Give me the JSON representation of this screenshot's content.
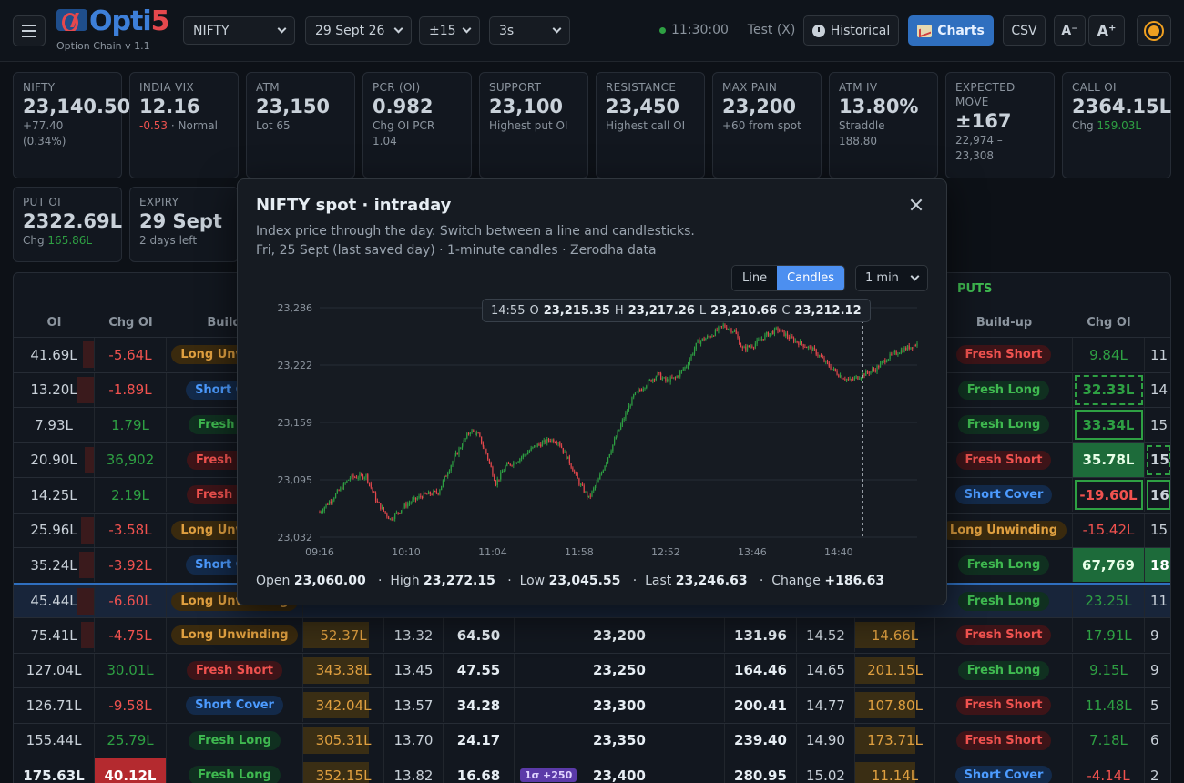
{
  "app": {
    "logo_main": "Opti",
    "logo_accent": "5",
    "subtitle": "Option Chain v 1.1"
  },
  "toolbar": {
    "symbol": "NIFTY",
    "expiry": "29 Sept 26",
    "strikes": "±15",
    "refresh": "3s",
    "time": "11:30:00",
    "mode": "Test (X)",
    "historical": "Historical",
    "charts": "Charts",
    "csv": "CSV",
    "font_down": "A⁻",
    "font_up": "A⁺"
  },
  "cards": [
    {
      "label": "NIFTY",
      "value": "23,140.50",
      "sub1": "+77.40",
      "sub2": "(0.34%)"
    },
    {
      "label": "INDIA VIX",
      "value": "12.16",
      "sub_red": "-0.53",
      "sub_rest": " · Normal"
    },
    {
      "label": "ATM",
      "value": "23,150",
      "sub1": "Lot 65"
    },
    {
      "label": "PCR (OI)",
      "value": "0.982",
      "sub1": "Chg OI PCR",
      "sub2": "1.04"
    },
    {
      "label": "SUPPORT",
      "value": "23,100",
      "sub1": "Highest put OI"
    },
    {
      "label": "RESISTANCE",
      "value": "23,450",
      "sub1": "Highest call OI"
    },
    {
      "label": "MAX PAIN",
      "value": "23,200",
      "sub1": "+60 from spot"
    },
    {
      "label": "ATM IV",
      "value": "13.80%",
      "sub1": "Straddle",
      "sub2": "188.80"
    },
    {
      "label": "EXPECTED MOVE",
      "value": "±167",
      "sub1": "22,974 –",
      "sub2": "23,308"
    },
    {
      "label": "CALL OI",
      "value": "2364.15L",
      "sub_pre": "Chg ",
      "sub_green": "159.03L"
    },
    {
      "label": "PUT OI",
      "value": "2322.69L",
      "sub_pre": "Chg ",
      "sub_green": "165.86L"
    },
    {
      "label": "EXPIRY",
      "value": "29 Sept",
      "sub1": "2 days left"
    }
  ],
  "table": {
    "puts_label": "PUTS",
    "headers": {
      "oi": "OI",
      "chg_oi": "Chg OI",
      "buildup_call": "Build-up",
      "buildup_put": "Build-up",
      "chg_oi_put": "Chg OI"
    },
    "rows": [
      {
        "oi": "41.69L",
        "chg": "-5.64L",
        "bu": "Long Unwinding",
        "pbu": "Fresh Short",
        "pchg": "9.84L",
        "poi": "11"
      },
      {
        "oi": "13.20L",
        "chg": "-1.89L",
        "bu": "Short Cover",
        "pbu": "Fresh Long",
        "pchg": "32.33L",
        "poi": "14"
      },
      {
        "oi": "7.93L",
        "chg": "1.79L",
        "bu": "Fresh Long",
        "pbu": "Fresh Long",
        "pchg": "33.34L",
        "poi": "15"
      },
      {
        "oi": "20.90L",
        "chg": "36,902",
        "bu": "Fresh Short",
        "pbu": "Fresh Short",
        "pchg": "35.78L",
        "poi": "15"
      },
      {
        "oi": "14.25L",
        "chg": "2.19L",
        "bu": "Fresh Short",
        "pbu": "Short Cover",
        "pchg": "-19.60L",
        "poi": "16"
      },
      {
        "oi": "25.96L",
        "chg": "-3.58L",
        "bu": "Long Unwinding",
        "pbu": "Long Unwinding",
        "pchg": "-15.42L",
        "poi": "15"
      },
      {
        "oi": "35.24L",
        "chg": "-3.92L",
        "bu": "Short Cover",
        "pbu": "Fresh Long",
        "pchg": "67,769",
        "poi": "18"
      },
      {
        "oi": "45.44L",
        "chg": "-6.60L",
        "bu": "Long Unwinding",
        "pbu": "Fresh Long",
        "pchg": "23.25L",
        "poi": "11"
      },
      {
        "oi": "75.41L",
        "chg": "-4.75L",
        "bu": "Long Unwinding",
        "cvol": "52.37L",
        "civ": "13.32",
        "cltp": "64.50",
        "strike": "23,200",
        "pltp": "131.96",
        "piv": "14.52",
        "pvol": "14.66L",
        "pbu": "Fresh Short",
        "pchg": "17.91L",
        "poi": "9"
      },
      {
        "oi": "127.04L",
        "chg": "30.01L",
        "bu": "Fresh Short",
        "cvol": "343.38L",
        "civ": "13.45",
        "cltp": "47.55",
        "strike": "23,250",
        "pltp": "164.46",
        "piv": "14.65",
        "pvol": "201.15L",
        "pbu": "Fresh Long",
        "pchg": "9.15L",
        "poi": "9"
      },
      {
        "oi": "126.71L",
        "chg": "-9.58L",
        "bu": "Short Cover",
        "cvol": "342.04L",
        "civ": "13.57",
        "cltp": "34.28",
        "strike": "23,300",
        "pltp": "200.41",
        "piv": "14.77",
        "pvol": "107.80L",
        "pbu": "Fresh Short",
        "pchg": "11.48L",
        "poi": "5"
      },
      {
        "oi": "155.44L",
        "chg": "25.79L",
        "bu": "Fresh Long",
        "cvol": "305.31L",
        "civ": "13.70",
        "cltp": "24.17",
        "strike": "23,350",
        "pltp": "239.40",
        "piv": "14.90",
        "pvol": "173.71L",
        "pbu": "Fresh Short",
        "pchg": "7.18L",
        "poi": "6"
      },
      {
        "oi": "175.63L",
        "chg": "40.12L",
        "bu": "Fresh Long",
        "cvol": "352.15L",
        "civ": "13.82",
        "cltp": "16.68",
        "strike": "23,400",
        "sigma": "1σ +250",
        "pltp": "280.95",
        "piv": "15.02",
        "pvol": "11.14L",
        "pbu": "Short Cover",
        "pchg": "-4.14L",
        "poi": "2"
      }
    ]
  },
  "modal": {
    "title": "NIFTY spot · intraday",
    "desc1": "Index price through the day. Switch between a line and candlesticks.",
    "desc2": "Fri, 25 Sept (last saved day) · 1-minute candles · Zerodha data",
    "line_btn": "Line",
    "candles_btn": "Candles",
    "interval": "1 min",
    "tooltip": {
      "time": "14:55",
      "o_label": "O",
      "o": "23,215.35",
      "h_label": "H",
      "h": "23,217.26",
      "l_label": "L",
      "l": "23,210.66",
      "c_label": "C",
      "c": "23,212.12"
    },
    "stats": {
      "open_label": "Open",
      "open": "23,060.00",
      "high_label": "High",
      "high": "23,272.15",
      "low_label": "Low",
      "low": "23,045.55",
      "last_label": "Last",
      "last": "23,246.63",
      "change_label": "Change",
      "change": "+186.63"
    }
  },
  "chart_data": {
    "type": "candlestick",
    "title": "NIFTY spot · intraday",
    "interval": "1 min",
    "ylim": [
      23032,
      23286
    ],
    "y_ticks": [
      "23,286",
      "23,222",
      "23,159",
      "23,095",
      "23,032"
    ],
    "x_ticks": [
      "09:16",
      "10:10",
      "11:04",
      "11:58",
      "12:52",
      "13:46",
      "14:40"
    ],
    "x_ticks_minutes": [
      556,
      610,
      664,
      718,
      772,
      826,
      880
    ],
    "x_range_minutes": [
      556,
      929
    ],
    "cursor_minute": 895,
    "colors": {
      "up": "#2ea043",
      "down": "#e5484d",
      "grid": "#262c35"
    },
    "price_path": [
      [
        556,
        23060
      ],
      [
        564,
        23075
      ],
      [
        575,
        23098
      ],
      [
        585,
        23100
      ],
      [
        592,
        23070
      ],
      [
        600,
        23052
      ],
      [
        610,
        23068
      ],
      [
        620,
        23078
      ],
      [
        630,
        23082
      ],
      [
        640,
        23120
      ],
      [
        650,
        23150
      ],
      [
        655,
        23145
      ],
      [
        660,
        23125
      ],
      [
        666,
        23092
      ],
      [
        672,
        23110
      ],
      [
        680,
        23118
      ],
      [
        690,
        23132
      ],
      [
        700,
        23140
      ],
      [
        705,
        23138
      ],
      [
        712,
        23115
      ],
      [
        718,
        23092
      ],
      [
        724,
        23075
      ],
      [
        730,
        23095
      ],
      [
        738,
        23130
      ],
      [
        745,
        23160
      ],
      [
        752,
        23188
      ],
      [
        760,
        23202
      ],
      [
        767,
        23212
      ],
      [
        772,
        23205
      ],
      [
        778,
        23208
      ],
      [
        785,
        23222
      ],
      [
        792,
        23248
      ],
      [
        800,
        23255
      ],
      [
        808,
        23266
      ],
      [
        815,
        23260
      ],
      [
        820,
        23240
      ],
      [
        827,
        23245
      ],
      [
        835,
        23256
      ],
      [
        842,
        23262
      ],
      [
        850,
        23252
      ],
      [
        858,
        23245
      ],
      [
        865,
        23238
      ],
      [
        872,
        23225
      ],
      [
        880,
        23212
      ],
      [
        887,
        23205
      ],
      [
        895,
        23212
      ],
      [
        903,
        23218
      ],
      [
        910,
        23230
      ],
      [
        918,
        23238
      ],
      [
        929,
        23246
      ]
    ]
  }
}
